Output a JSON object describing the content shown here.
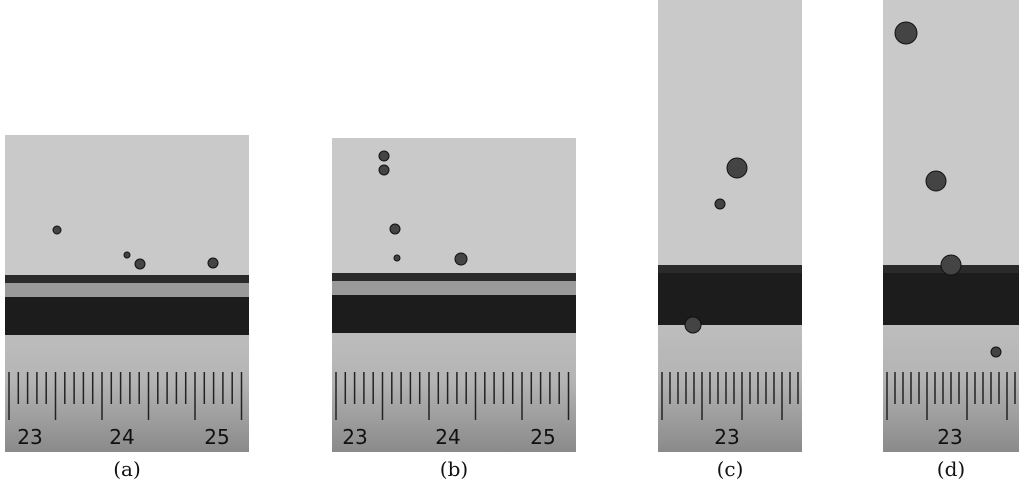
{
  "panels": [
    {
      "caption": "(a)",
      "scale_labels": [
        "23",
        "24",
        "25"
      ]
    },
    {
      "caption": "(b)",
      "scale_labels": [
        "23",
        "24",
        "25"
      ]
    },
    {
      "caption": "(c)",
      "scale_labels": [
        "23"
      ]
    },
    {
      "caption": "(d)",
      "scale_labels": [
        "23"
      ]
    }
  ]
}
